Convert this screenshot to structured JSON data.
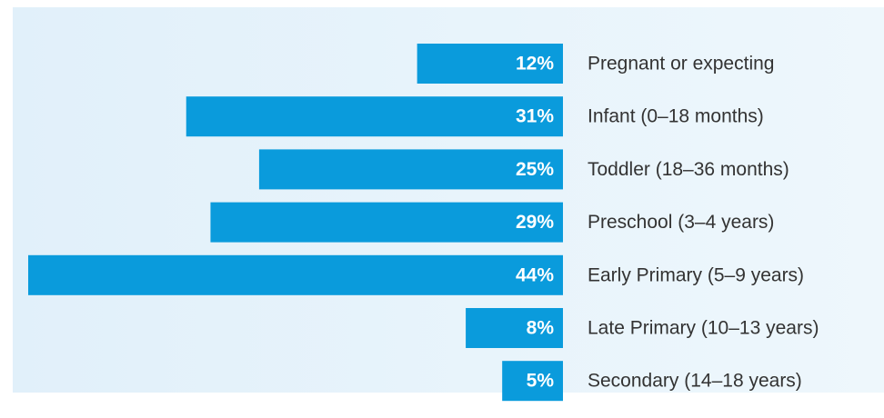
{
  "chart_data": {
    "type": "bar",
    "orientation": "horizontal",
    "categories": [
      "Pregnant or expecting",
      "Infant (0–18 months)",
      "Toddler (18–36 months)",
      "Preschool (3–4 years)",
      "Early Primary (5–9 years)",
      "Late Primary (10–13 years)",
      "Secondary (14–18 years)"
    ],
    "values": [
      12,
      31,
      25,
      29,
      44,
      8,
      5
    ],
    "value_labels": [
      "12%",
      "31%",
      "25%",
      "29%",
      "44%",
      "8%",
      "5%"
    ],
    "color": "#0a9bdc"
  }
}
